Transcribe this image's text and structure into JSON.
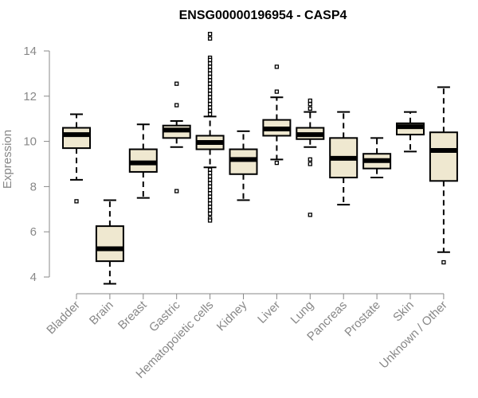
{
  "chart_data": {
    "type": "boxplot",
    "title": "ENSG00000196954 - CASP4",
    "ylabel": "Expression",
    "xlabel": "",
    "ylim": [
      3.5,
      15
    ],
    "yticks": [
      4,
      6,
      8,
      10,
      12,
      14
    ],
    "box_fill": "#efe8d0",
    "box_stroke": "#000000",
    "categories": [
      "Bladder",
      "Brain",
      "Breast",
      "Gastric",
      "Hematopoietic cells",
      "Kidney",
      "Liver",
      "Lung",
      "Pancreas",
      "Prostate",
      "Skin",
      "Unknown / Other"
    ],
    "boxes": [
      {
        "whisker_low": 8.3,
        "q1": 9.7,
        "median": 10.3,
        "q3": 10.6,
        "whisker_high": 11.2,
        "outliers": [
          7.35
        ]
      },
      {
        "whisker_low": 3.7,
        "q1": 4.7,
        "median": 5.25,
        "q3": 6.25,
        "whisker_high": 7.4,
        "outliers": []
      },
      {
        "whisker_low": 7.5,
        "q1": 8.65,
        "median": 9.05,
        "q3": 9.65,
        "whisker_high": 10.75,
        "outliers": []
      },
      {
        "whisker_low": 9.75,
        "q1": 10.15,
        "median": 10.5,
        "q3": 10.7,
        "whisker_high": 10.9,
        "outliers": [
          12.55,
          11.6,
          7.8
        ]
      },
      {
        "whisker_low": 8.85,
        "q1": 9.65,
        "median": 9.95,
        "q3": 10.25,
        "whisker_high": 11.1,
        "outliers": [
          14.75,
          14.55,
          13.7,
          13.6,
          13.45,
          13.3,
          13.15,
          13.0,
          12.85,
          12.7,
          12.55,
          12.4,
          12.25,
          12.1,
          11.95,
          11.8,
          11.65,
          11.5,
          11.35,
          11.2,
          8.75,
          8.6,
          8.45,
          8.3,
          8.15,
          8.0,
          7.85,
          7.7,
          7.55,
          7.4,
          7.25,
          7.1,
          6.95,
          6.8,
          6.6,
          6.5
        ]
      },
      {
        "whisker_low": 7.4,
        "q1": 8.55,
        "median": 9.2,
        "q3": 9.65,
        "whisker_high": 10.45,
        "outliers": []
      },
      {
        "whisker_low": 9.2,
        "q1": 10.25,
        "median": 10.55,
        "q3": 10.95,
        "whisker_high": 11.95,
        "outliers": [
          13.3,
          12.2,
          9.05
        ]
      },
      {
        "whisker_low": 9.75,
        "q1": 10.1,
        "median": 10.3,
        "q3": 10.6,
        "whisker_high": 11.3,
        "outliers": [
          11.8,
          11.65,
          11.45,
          9.2,
          9.0,
          6.75
        ]
      },
      {
        "whisker_low": 7.2,
        "q1": 8.4,
        "median": 9.25,
        "q3": 10.15,
        "whisker_high": 11.3,
        "outliers": []
      },
      {
        "whisker_low": 8.4,
        "q1": 8.8,
        "median": 9.15,
        "q3": 9.45,
        "whisker_high": 10.15,
        "outliers": []
      },
      {
        "whisker_low": 9.55,
        "q1": 10.3,
        "median": 10.65,
        "q3": 10.8,
        "whisker_high": 11.3,
        "outliers": []
      },
      {
        "whisker_low": 5.1,
        "q1": 8.25,
        "median": 9.6,
        "q3": 10.4,
        "whisker_high": 12.4,
        "outliers": [
          4.65
        ]
      }
    ]
  }
}
